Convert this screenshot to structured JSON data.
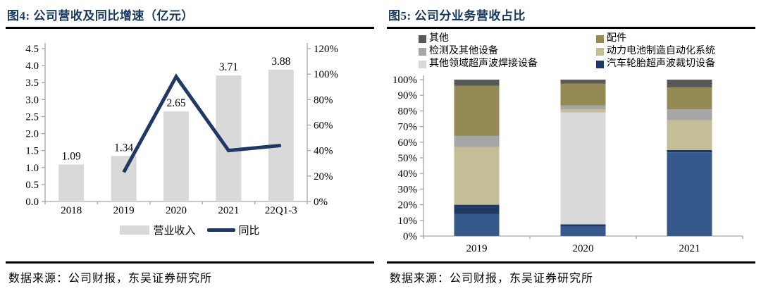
{
  "panels": [
    {
      "title": "图4:  公司营收及同比增速（亿元）",
      "source": "数据来源：公司财报，东吴证券研究所"
    },
    {
      "title": "图5:  公司分业务营收占比",
      "source": "数据来源：公司财报，东吴证券研究所"
    }
  ],
  "colors": {
    "title_navy": "#17375e",
    "line_navy": "#1f3864",
    "bar_gray": "#d9d9d9",
    "axis_gray": "#a6a6a6"
  },
  "chart_data": [
    {
      "type": "bar+line",
      "title": "公司营收及同比增速（亿元）",
      "categories": [
        "2018",
        "2019",
        "2020",
        "2021",
        "22Q1-3"
      ],
      "bar_series": {
        "name": "营业收入",
        "color": "#d9d9d9",
        "values": [
          1.09,
          1.34,
          2.65,
          3.71,
          3.88
        ]
      },
      "data_labels": [
        "1.09",
        "1.34",
        "2.65",
        "3.71",
        "3.88"
      ],
      "line_series": {
        "name": "同比",
        "color": "#1f3864",
        "axis": "right",
        "values": [
          null,
          23,
          98,
          40,
          44
        ]
      },
      "left_axis": {
        "min": 0,
        "max": 4.5,
        "step": 0.5,
        "tick_labels": [
          "0.0",
          "0.5",
          "1.0",
          "1.5",
          "2.0",
          "2.5",
          "3.0",
          "3.5",
          "4.0",
          "4.5"
        ]
      },
      "right_axis": {
        "min": 0,
        "max": 120,
        "step": 20,
        "tick_labels": [
          "0%",
          "20%",
          "40%",
          "60%",
          "80%",
          "100%",
          "120%"
        ]
      },
      "grid": false,
      "legend_position": "bottom",
      "legend": [
        {
          "label": "营业收入",
          "type": "bar",
          "color": "#d9d9d9"
        },
        {
          "label": "同比",
          "type": "line",
          "color": "#1f3864"
        }
      ]
    },
    {
      "type": "stacked-bar-100",
      "title": "公司分业务营收占比",
      "categories": [
        "2019",
        "2020",
        "2021"
      ],
      "y_axis": {
        "min": 0,
        "max": 100,
        "step": 10,
        "tick_labels": [
          "0%",
          "10%",
          "20%",
          "30%",
          "40%",
          "50%",
          "60%",
          "70%",
          "80%",
          "90%",
          "100%"
        ]
      },
      "series_bottom_to_top": [
        {
          "name": "汽车轮胎超声波裁切设备",
          "color": "#36598c",
          "cap_color": "#1f3864",
          "values": [
            20,
            7.5,
            55
          ],
          "caps": [
            6,
            1.5,
            1.5
          ]
        },
        {
          "name": "其他领域超声波焊接设备",
          "color": "#d9d9d9",
          "values": [
            0,
            71.5,
            0
          ]
        },
        {
          "name": "动力电池制造自动化系统",
          "color": "#c4bd97",
          "values": [
            37,
            2,
            19
          ]
        },
        {
          "name": "检测及其他设备",
          "color": "#a6a6a6",
          "values": [
            7,
            2.5,
            7
          ]
        },
        {
          "name": "配件",
          "color": "#948a54",
          "values": [
            32,
            14,
            14
          ]
        },
        {
          "name": "其他",
          "color": "#595959",
          "values": [
            4,
            2.5,
            5
          ]
        }
      ],
      "grid": false,
      "legend_position": "top",
      "legend": [
        {
          "label": "其他",
          "color": "#595959"
        },
        {
          "label": "配件",
          "color": "#948a54"
        },
        {
          "label": "检测及其他设备",
          "color": "#a6a6a6"
        },
        {
          "label": "动力电池制造自动化系统",
          "color": "#c4bd97"
        },
        {
          "label": "其他领域超声波焊接设备",
          "color": "#d9d9d9"
        },
        {
          "label": "汽车轮胎超声波裁切设备",
          "color": "#1f3864"
        }
      ]
    }
  ]
}
